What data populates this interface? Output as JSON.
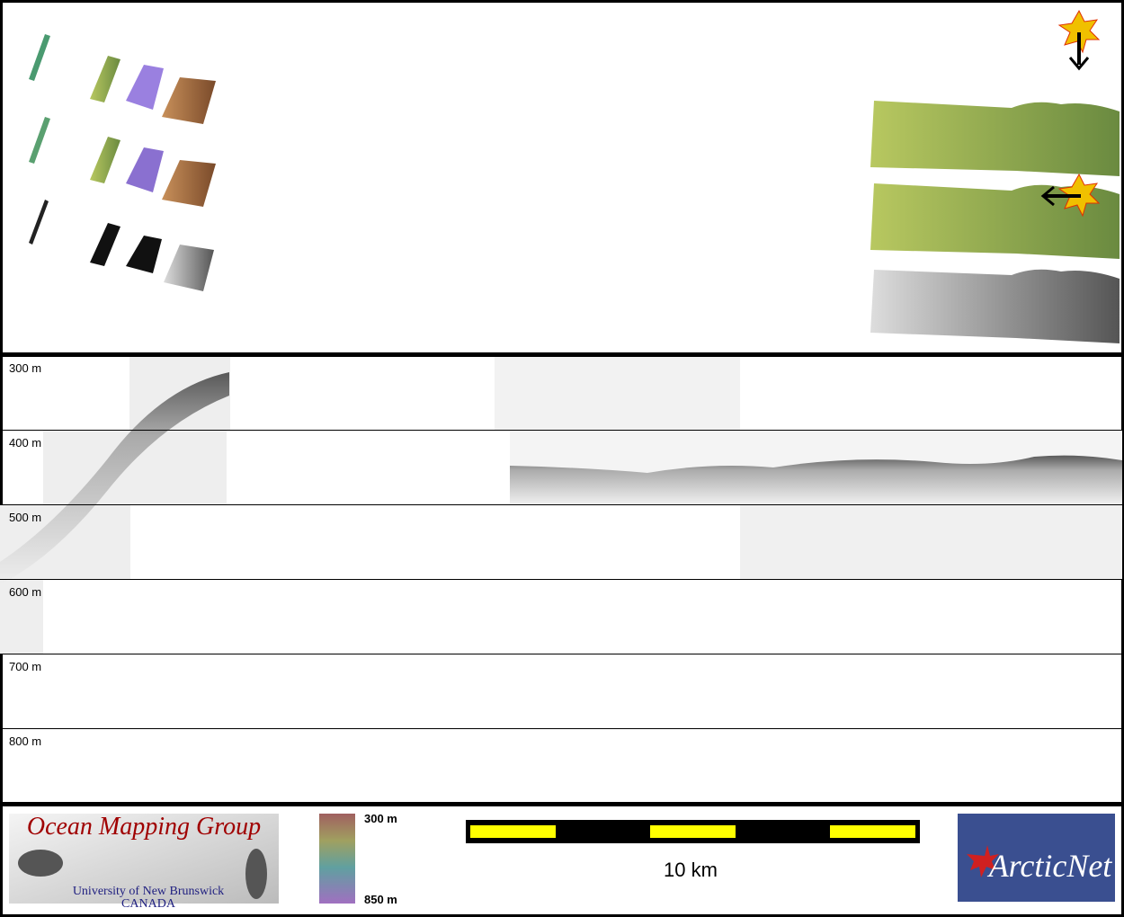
{
  "depth_labels": [
    "300 m",
    "400 m",
    "500 m",
    "600 m",
    "700 m",
    "800 m"
  ],
  "logo": {
    "title": "Ocean Mapping Group",
    "university": "University of New Brunswick",
    "country": "CANADA"
  },
  "colorbar": {
    "top": "300 m",
    "bottom": "850 m"
  },
  "scale_bar": {
    "label": "10 km"
  },
  "partner_logo": {
    "text": "ArcticNet"
  }
}
